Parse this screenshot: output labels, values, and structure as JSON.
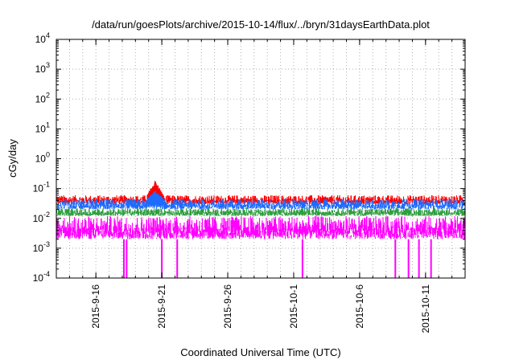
{
  "chart_data": {
    "type": "line",
    "title": "/data/run/goesPlots/archive/2015-10-14/flux/../bryn/31daysEarthData.plot",
    "xlabel": "Coordinated Universal Time (UTC)",
    "ylabel": "cGy/day",
    "y_scale": "log",
    "ylim": [
      0.0001,
      10000
    ],
    "xlim": [
      "2015-09-13",
      "2015-10-14"
    ],
    "y_ticks": [
      {
        "value": 0.0001,
        "base": "10",
        "exp": "-4"
      },
      {
        "value": 0.001,
        "base": "10",
        "exp": "-3"
      },
      {
        "value": 0.01,
        "base": "10",
        "exp": "-2"
      },
      {
        "value": 0.1,
        "base": "10",
        "exp": "-1"
      },
      {
        "value": 1,
        "base": "10",
        "exp": "0"
      },
      {
        "value": 10,
        "base": "10",
        "exp": "1"
      },
      {
        "value": 100,
        "base": "10",
        "exp": "2"
      },
      {
        "value": 1000,
        "base": "10",
        "exp": "3"
      },
      {
        "value": 10000,
        "base": "10",
        "exp": "4"
      }
    ],
    "x_ticks": [
      "2015-9-16",
      "2015-9-21",
      "2015-9-26",
      "2015-10-1",
      "2015-10-6",
      "2015-10-11"
    ],
    "x_tick_dates": [
      "2015-09-16",
      "2015-09-21",
      "2015-09-26",
      "2015-10-01",
      "2015-10-06",
      "2015-10-11"
    ],
    "grid": true,
    "legend": "none",
    "series": [
      {
        "color": "#ff0000",
        "typical_range": [
          0.03,
          0.06
        ],
        "peaks": [
          {
            "x": "2015-09-20T12:00",
            "y": 0.2
          }
        ]
      },
      {
        "color": "#1e6bff",
        "typical_range": [
          0.02,
          0.045
        ],
        "peaks": [
          {
            "x": "2015-09-20T12:00",
            "y": 0.09
          }
        ]
      },
      {
        "color": "#2e9e3e",
        "typical_range": [
          0.012,
          0.022
        ]
      },
      {
        "color": "#ff00ff",
        "typical_range": [
          0.002,
          0.012
        ],
        "dropouts": [
          "2015-09-18T03:00",
          "2015-09-18T08:00",
          "2015-09-21T00:00",
          "2015-09-22T04:00",
          "2015-10-01T16:00",
          "2015-10-08T17:00",
          "2015-10-09T17:00",
          "2015-10-10T12:00",
          "2015-10-11T10:00"
        ]
      }
    ]
  }
}
